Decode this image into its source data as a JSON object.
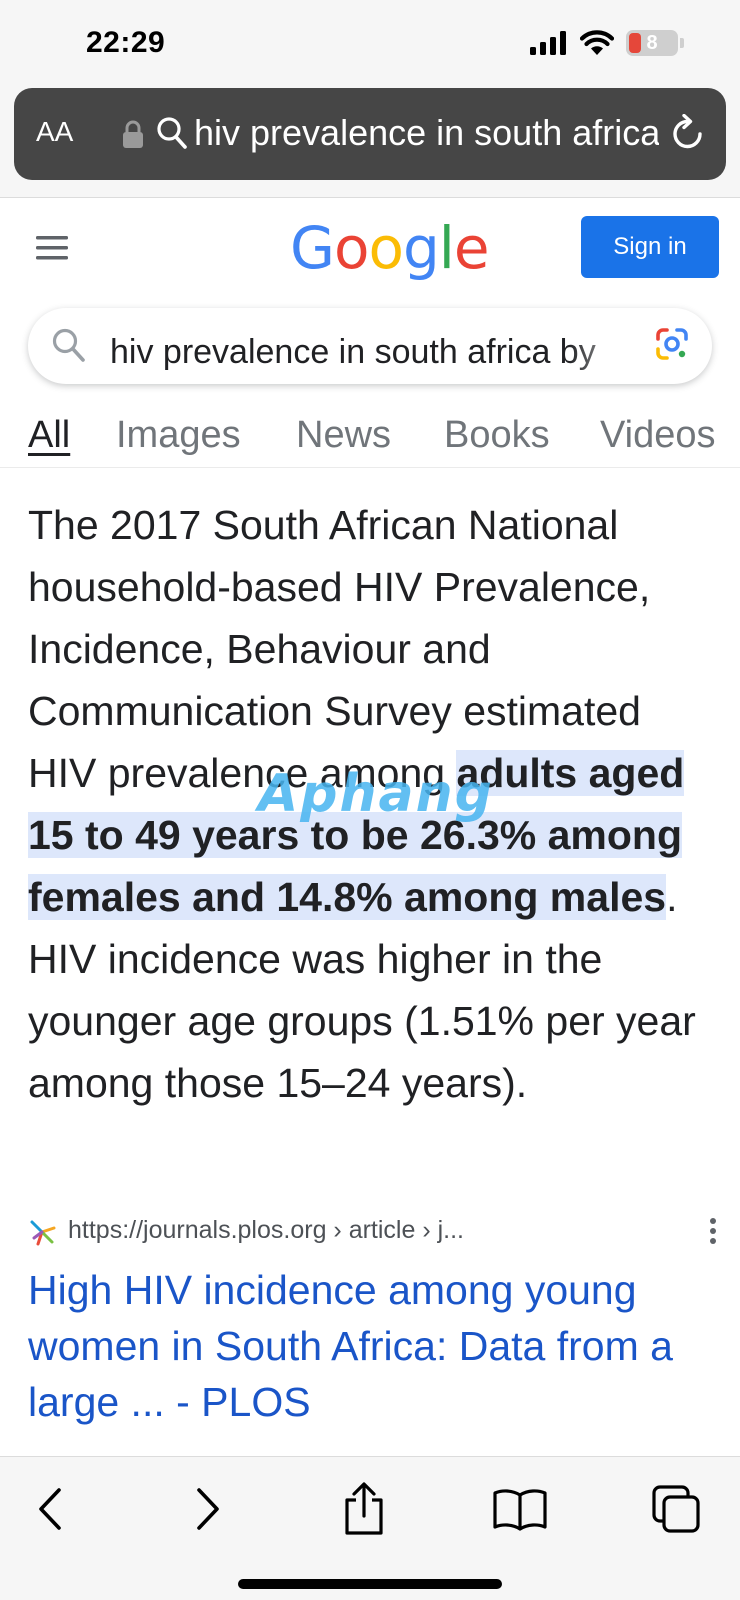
{
  "status_bar": {
    "time": "22:29",
    "battery": "8",
    "icons": [
      "cellular-signal-icon",
      "wifi-icon",
      "battery-icon"
    ]
  },
  "browser": {
    "text_size_label": "AA",
    "url_text": "hiv prevalence in south africa",
    "icons": [
      "lock-icon",
      "search-icon",
      "reload-icon"
    ]
  },
  "google": {
    "logo": {
      "letters": [
        "G",
        "o",
        "o",
        "g",
        "l",
        "e"
      ],
      "colors": [
        "#4285F4",
        "#EA4335",
        "#FBBC05",
        "#4285F4",
        "#34A853",
        "#EA4335"
      ]
    },
    "sign_in_label": "Sign in",
    "search_query": "hiv prevalence in south africa by",
    "tabs": [
      {
        "label": "All",
        "active": true
      },
      {
        "label": "Images",
        "active": false
      },
      {
        "label": "News",
        "active": false
      },
      {
        "label": "Books",
        "active": false
      },
      {
        "label": "Videos",
        "active": false
      }
    ]
  },
  "snippet": {
    "before": "The 2017 South African National household-based HIV Prevalence, Incidence, Behaviour and Communication Survey estimated HIV prevalence among ",
    "highlight": "adults aged 15 to 49 years to be 26.3% among females and 14.8% among males",
    "after": ". HIV incidence was higher in the younger age groups (1.51% per year among those 15–24 years)."
  },
  "watermark": "Aphang",
  "result": {
    "source_url": "https://journals.plos.org › article › j...",
    "title": "High HIV incidence among young women in South Africa: Data from a large ... - PLOS"
  },
  "toolbar": {
    "items": [
      "back-icon",
      "forward-icon",
      "share-icon",
      "bookmarks-icon",
      "tabs-icon"
    ]
  },
  "colors": {
    "link": "#1a55c8",
    "highlight_bg": "#dde7fb",
    "sign_in_bg": "#1a73e8",
    "address_bar_bg": "#464646"
  }
}
